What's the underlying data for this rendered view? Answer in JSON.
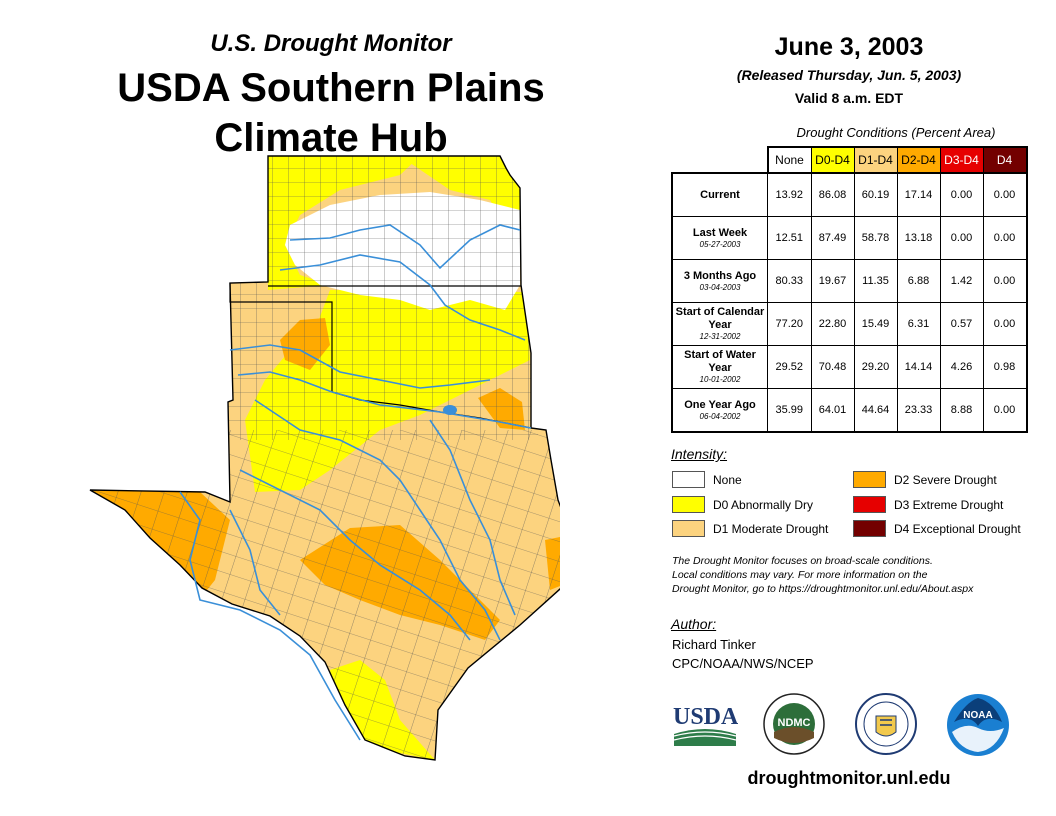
{
  "header": {
    "subtitle": "U.S. Drought Monitor",
    "title_line1": "USDA Southern Plains",
    "title_line2": "Climate Hub"
  },
  "map": {
    "region": "Kansas, Oklahoma, Texas",
    "colors": {
      "none": "#ffffff",
      "d0": "#ffff00",
      "d1": "#fcd37f",
      "d2": "#ffaa00",
      "d3": "#e60000",
      "d4": "#730000",
      "water": "#3a8fd8",
      "county_line": "#555555"
    }
  },
  "report": {
    "date": "June 3, 2003",
    "released": "(Released Thursday, Jun. 5, 2003)",
    "valid": "Valid 8 a.m. EDT"
  },
  "table": {
    "caption": "Drought Conditions (Percent Area)",
    "columns": [
      "None",
      "D0-D4",
      "D1-D4",
      "D2-D4",
      "D3-D4",
      "D4"
    ],
    "rows": [
      {
        "label": "Current",
        "date": "",
        "values": [
          "13.92",
          "86.08",
          "60.19",
          "17.14",
          "0.00",
          "0.00"
        ]
      },
      {
        "label": "Last Week",
        "date": "05-27-2003",
        "values": [
          "12.51",
          "87.49",
          "58.78",
          "13.18",
          "0.00",
          "0.00"
        ]
      },
      {
        "label": "3 Months Ago",
        "date": "03-04-2003",
        "values": [
          "80.33",
          "19.67",
          "11.35",
          "6.88",
          "1.42",
          "0.00"
        ]
      },
      {
        "label": "Start of Calendar Year",
        "date": "12-31-2002",
        "values": [
          "77.20",
          "22.80",
          "15.49",
          "6.31",
          "0.57",
          "0.00"
        ]
      },
      {
        "label": "Start of Water Year",
        "date": "10-01-2002",
        "values": [
          "29.52",
          "70.48",
          "29.20",
          "14.14",
          "4.26",
          "0.98"
        ]
      },
      {
        "label": "One Year Ago",
        "date": "06-04-2002",
        "values": [
          "35.99",
          "64.01",
          "44.64",
          "23.33",
          "8.88",
          "0.00"
        ]
      }
    ]
  },
  "legend": {
    "title": "Intensity:",
    "items": [
      {
        "label": "None",
        "color": "#ffffff"
      },
      {
        "label": "D0 Abnormally Dry",
        "color": "#ffff00"
      },
      {
        "label": "D1 Moderate Drought",
        "color": "#fcd37f"
      },
      {
        "label": "D2 Severe Drought",
        "color": "#ffaa00"
      },
      {
        "label": "D3 Extreme Drought",
        "color": "#e60000"
      },
      {
        "label": "D4 Exceptional Drought",
        "color": "#730000"
      }
    ]
  },
  "note": {
    "line1": "The Drought Monitor focuses on broad-scale conditions.",
    "line2": "Local conditions may vary. For more information on the",
    "line3": "Drought Monitor, go to https://droughtmonitor.unl.edu/About.aspx"
  },
  "author": {
    "label": "Author:",
    "name": "Richard Tinker",
    "org": "CPC/NOAA/NWS/NCEP"
  },
  "logos": {
    "usda": "USDA",
    "ndmc": "NDMC",
    "noaa": "NOAA"
  },
  "footer": {
    "url": "droughtmonitor.unl.edu"
  }
}
